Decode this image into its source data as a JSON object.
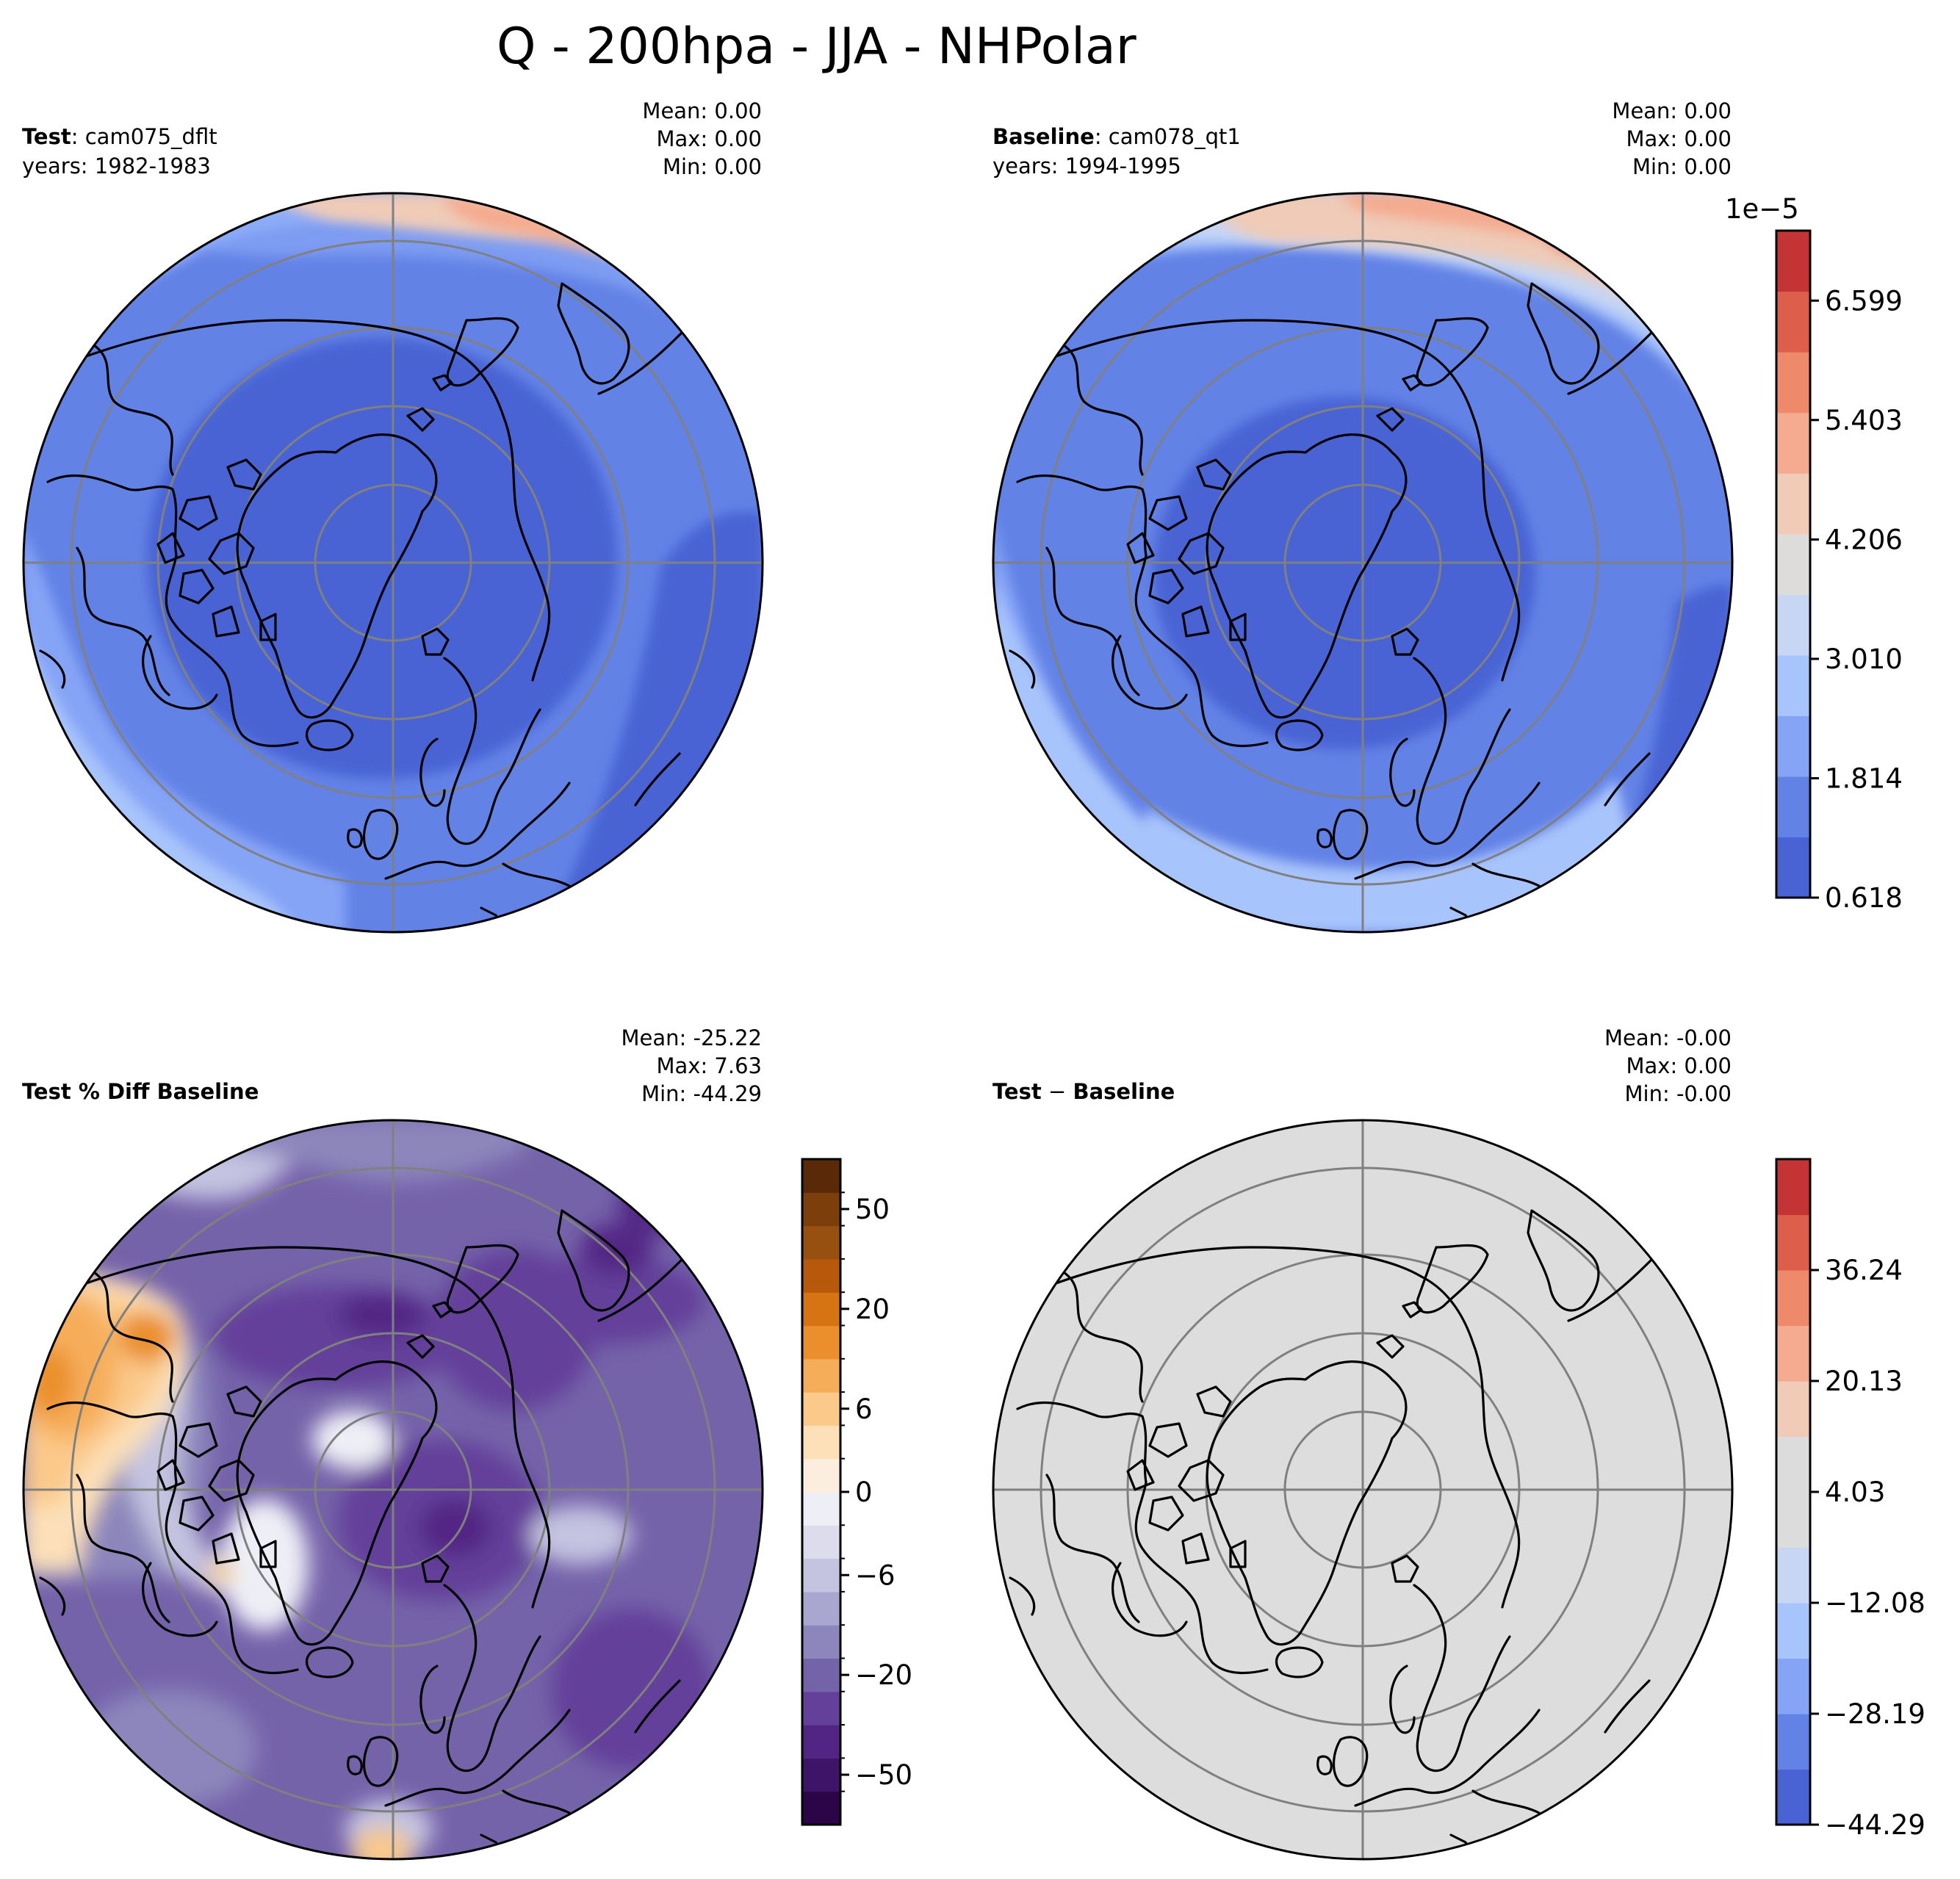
{
  "title": "Q - 200hpa - JJA - NHPolar",
  "panels": {
    "test": {
      "label_bold": "Test",
      "label_rest": ": cam075_dflt",
      "years": "years: 1982-1983",
      "stats": {
        "mean": "Mean:  0.00",
        "max": "Max:  0.00",
        "min": "Min:  0.00"
      }
    },
    "baseline": {
      "label_bold": "Baseline",
      "label_rest": ": cam078_qt1",
      "years": "years: 1994-1995",
      "stats": {
        "mean": "Mean:  0.00",
        "max": "Max:  0.00",
        "min": "Min:  0.00"
      }
    },
    "pctdiff": {
      "label_bold": "Test % Diff Baseline",
      "stats": {
        "mean": "Mean: -25.22",
        "max": "Max:  7.63",
        "min": "Min: -44.29"
      }
    },
    "diff": {
      "label_bold": "Test",
      "label_sep": " − ",
      "label_bold2": "Baseline",
      "stats": {
        "mean": "Mean: -0.00",
        "max": "Max:  0.00",
        "min": "Min: -0.00"
      }
    }
  },
  "colorbars": {
    "main": {
      "exponent": "1e−5",
      "ticks": [
        "0.618",
        "1.814",
        "3.010",
        "4.206",
        "5.403",
        "6.599"
      ],
      "tick_values": [
        0.618,
        1.814,
        3.01,
        4.206,
        5.403,
        6.599
      ],
      "range": [
        0.618,
        7.3
      ],
      "colors": [
        "#4a63d4",
        "#6382e6",
        "#86a4f6",
        "#a8c4fc",
        "#c7d6f3",
        "#dedcdb",
        "#efcbb8",
        "#f4ab8f",
        "#ee8a6a",
        "#dd5e4b",
        "#c43434"
      ]
    },
    "pct": {
      "ticks": [
        "−50",
        "−20",
        "−6",
        "0",
        "6",
        "20",
        "50"
      ],
      "tick_index": [
        1.5,
        4.5,
        7.5,
        10,
        12.5,
        15.5,
        18.5
      ],
      "colors": [
        "#2b0548",
        "#3e1468",
        "#522585",
        "#64409a",
        "#7563aa",
        "#8c86bc",
        "#a9a6cf",
        "#c4c3e0",
        "#dcdced",
        "#eeeff6",
        "#fbeede",
        "#fde0b8",
        "#fbc98a",
        "#f6ad5a",
        "#ea8f2c",
        "#d67414",
        "#b8580a",
        "#985010",
        "#7c3e0b",
        "#5a2a08"
      ]
    },
    "diff": {
      "ticks": [
        "−44.29",
        "−28.19",
        "−12.08",
        "4.03",
        "20.13",
        "36.24"
      ],
      "tick_index": [
        0,
        2,
        4,
        6,
        8,
        10
      ],
      "colors": [
        "#4a63d4",
        "#6382e6",
        "#86a4f6",
        "#a8c4fc",
        "#c7d6f3",
        "#dcdcdc",
        "#dcdcdc",
        "#efcbb8",
        "#f4ab8f",
        "#ee8a6a",
        "#dd5e4b",
        "#c43434"
      ]
    }
  },
  "map_fill": {
    "test": {
      "base": "#6382e6",
      "inner": "#4a63d4",
      "outer": "#86a4f6",
      "rim": "#a8c4fc",
      "warm": "#efcbb8",
      "warm2": "#f4ab8f"
    },
    "baseline": {
      "base": "#6382e6",
      "inner": "#4a63d4",
      "outer": "#86a4f6",
      "rim": "#a8c4fc",
      "rim2": "#c7d6f3",
      "warm": "#efcbb8",
      "warm2": "#f4ab8f",
      "warm3": "#ee8a6a",
      "hot": "#dd5e4b"
    },
    "pctdiff": {
      "base": "#7563aa",
      "dark": "#64409a",
      "darker": "#522585",
      "light": "#8c86bc",
      "lighter": "#c4c3e0",
      "white": "#eeeff6",
      "orange1": "#fde0b8",
      "orange2": "#fbc98a",
      "orange3": "#f6ad5a",
      "orange4": "#ea8f2c"
    },
    "diff": {
      "base": "#dcdddc"
    }
  }
}
